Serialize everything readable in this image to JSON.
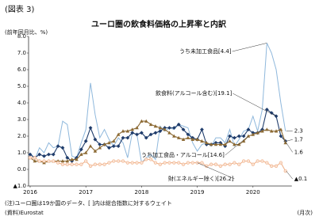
{
  "figure_label": "(図表 3)",
  "chart_data": {
    "type": "line",
    "title": "ユーロ圏の飲食料価格の上昇率と内訳",
    "y_label": "(前年同月比、%)",
    "x_label": "(月次)",
    "note": "(注)ユーロ圏は19か国のデータ、[ ]内は総合指数に対するウェイト",
    "source": "(資料)Eurostat",
    "categories": [
      "2016",
      null,
      null,
      null,
      null,
      null,
      null,
      null,
      null,
      null,
      null,
      null,
      "2017",
      null,
      null,
      null,
      null,
      null,
      null,
      null,
      null,
      null,
      null,
      null,
      "2018",
      null,
      null,
      null,
      null,
      null,
      null,
      null,
      null,
      null,
      null,
      null,
      "2019",
      null,
      null,
      null,
      null,
      null,
      null,
      null,
      null,
      null,
      null,
      null,
      "2020",
      null,
      null,
      null,
      null,
      null,
      null,
      null
    ],
    "ylim": [
      -1,
      8
    ],
    "yticks": [
      {
        "value": -1,
        "label": "▲1.0"
      },
      {
        "value": 0,
        "label": "0.0"
      },
      {
        "value": 1,
        "label": "1.0"
      },
      {
        "value": 2,
        "label": "2.0"
      },
      {
        "value": 3,
        "label": "3.0"
      },
      {
        "value": 4,
        "label": "4.0"
      },
      {
        "value": 5,
        "label": "5.0"
      },
      {
        "value": 6,
        "label": "6.0"
      },
      {
        "value": 7,
        "label": "7.0"
      },
      {
        "value": 8,
        "label": "8.0"
      }
    ],
    "grid": false,
    "series": [
      {
        "name": "うち未加工食品[4.4]",
        "color": "#8fb8dc",
        "marker": "none",
        "values": [
          1.0,
          0.6,
          1.3,
          1.0,
          1.6,
          1.3,
          1.4,
          2.9,
          2.7,
          0.8,
          0.7,
          1.6,
          2.4,
          5.2,
          3.3,
          1.9,
          2.4,
          1.8,
          1.4,
          1.9,
          1.6,
          0.7,
          2.2,
          2.1,
          0.4,
          0.7,
          0.9,
          0.6,
          2.6,
          2.3,
          2.5,
          2.4,
          2.7,
          2.6,
          2.5,
          1.6,
          1.1,
          1.5,
          1.6,
          1.4,
          1.9,
          1.9,
          1.6,
          2.4,
          1.4,
          1.8,
          2.3,
          2.4,
          3.2,
          2.3,
          3.6,
          7.6,
          7.0,
          6.0,
          4.0,
          2.3
        ]
      },
      {
        "name": "飲食料(アルコール含む)[19.1]",
        "color": "#1f3c6b",
        "marker": "diamond",
        "values": [
          0.9,
          0.7,
          0.9,
          0.8,
          0.9,
          0.9,
          1.4,
          1.3,
          0.7,
          0.5,
          0.7,
          1.2,
          1.7,
          2.5,
          1.8,
          1.5,
          1.5,
          1.3,
          1.4,
          1.4,
          1.9,
          1.9,
          2.2,
          2.1,
          2.2,
          1.9,
          2.1,
          2.2,
          2.3,
          2.5,
          2.5,
          2.5,
          2.7,
          2.4,
          2.1,
          1.9,
          1.8,
          2.4,
          1.5,
          1.5,
          1.6,
          1.6,
          1.4,
          2.0,
          1.9,
          2.0,
          2.0,
          2.4,
          2.2,
          2.2,
          2.4,
          3.6,
          3.4,
          3.2,
          2.0,
          1.7
        ]
      },
      {
        "name": "うち加工食品・アルコール[14.6]",
        "color": "#8c6a34",
        "marker": "triangle",
        "values": [
          0.7,
          0.5,
          0.5,
          0.4,
          0.5,
          0.5,
          0.5,
          0.5,
          0.5,
          0.6,
          0.6,
          0.9,
          1.0,
          1.4,
          1.1,
          1.3,
          1.5,
          1.6,
          1.7,
          2.1,
          2.3,
          2.3,
          2.4,
          2.5,
          2.9,
          2.9,
          2.7,
          2.6,
          2.5,
          2.4,
          2.2,
          2.0,
          1.9,
          1.8,
          1.9,
          1.8,
          1.8,
          1.7,
          1.6,
          1.5,
          1.5,
          1.5,
          1.5,
          1.7,
          1.5,
          1.5,
          1.7,
          2.0,
          2.1,
          2.2,
          2.3,
          2.4,
          2.3,
          2.3,
          2.4,
          1.6
        ]
      },
      {
        "name": "財(エネルギー除く)[26.2]",
        "color": "#f0b48e",
        "marker": "circle",
        "values": [
          0.7,
          0.7,
          0.5,
          0.5,
          0.5,
          0.5,
          0.4,
          0.3,
          0.3,
          0.3,
          0.3,
          0.3,
          0.5,
          0.2,
          0.3,
          0.3,
          0.3,
          0.4,
          0.5,
          0.5,
          0.5,
          0.4,
          0.4,
          0.4,
          0.4,
          0.6,
          0.6,
          0.4,
          0.3,
          0.4,
          0.4,
          0.4,
          0.4,
          0.3,
          0.4,
          0.4,
          0.4,
          0.4,
          0.2,
          0.3,
          0.3,
          0.2,
          0.3,
          0.3,
          0.4,
          0.3,
          0.5,
          0.5,
          0.3,
          0.5,
          0.5,
          0.4,
          0.2,
          0.2,
          0.4,
          -0.1
        ],
        "value_labels": [
          null,
          null,
          null,
          null,
          null,
          null,
          null,
          null,
          null,
          null,
          null,
          null,
          null,
          null,
          null,
          null,
          null,
          null,
          null,
          null,
          null,
          null,
          null,
          null,
          null,
          null,
          null,
          null,
          null,
          null,
          null,
          null,
          null,
          null,
          null,
          null,
          null,
          null,
          null,
          null,
          null,
          null,
          null,
          null,
          null,
          null,
          null,
          null,
          null,
          null,
          null,
          null,
          null,
          null,
          null,
          "▲0.1"
        ]
      }
    ]
  }
}
